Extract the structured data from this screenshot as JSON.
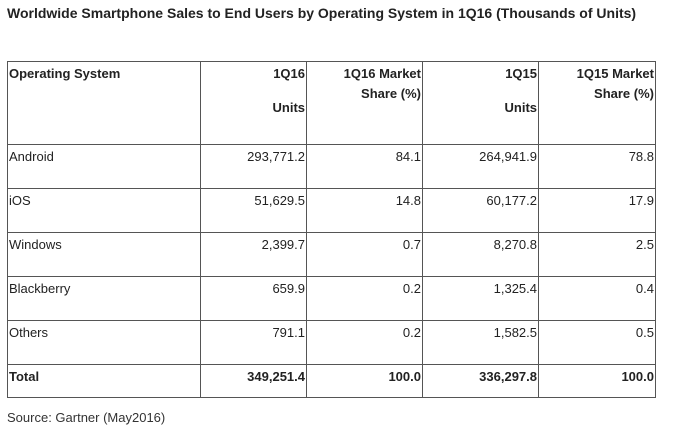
{
  "title": "Worldwide Smartphone Sales to End Users by Operating System in 1Q16 (Thousands of Units)",
  "table": {
    "headers": {
      "os": "Operating System",
      "q1_16_units_line1": "1Q16",
      "q1_16_units_line2": "Units",
      "q1_16_share_line1": "1Q16 Market",
      "q1_16_share_line2": "Share (%)",
      "q1_15_units_line1": "1Q15",
      "q1_15_units_line2": "Units",
      "q1_15_share_line1": "1Q15 Market",
      "q1_15_share_line2": "Share (%)"
    },
    "rows": [
      {
        "os": "Android",
        "units_1q16": "293,771.2",
        "share_1q16": "84.1",
        "units_1q15": "264,941.9",
        "share_1q15": "78.8"
      },
      {
        "os": "iOS",
        "units_1q16": "51,629.5",
        "share_1q16": "14.8",
        "units_1q15": "60,177.2",
        "share_1q15": "17.9"
      },
      {
        "os": "Windows",
        "units_1q16": "2,399.7",
        "share_1q16": "0.7",
        "units_1q15": "8,270.8",
        "share_1q15": "2.5"
      },
      {
        "os": "Blackberry",
        "units_1q16": "659.9",
        "share_1q16": "0.2",
        "units_1q15": "1,325.4",
        "share_1q15": "0.4"
      },
      {
        "os": "Others",
        "units_1q16": "791.1",
        "share_1q16": "0.2",
        "units_1q15": "1,582.5",
        "share_1q15": "0.5"
      },
      {
        "os": "Total",
        "units_1q16": "349,251.4",
        "share_1q16": "100.0",
        "units_1q15": "336,297.8",
        "share_1q15": "100.0"
      }
    ]
  },
  "source": "Source: Gartner (May2016)"
}
